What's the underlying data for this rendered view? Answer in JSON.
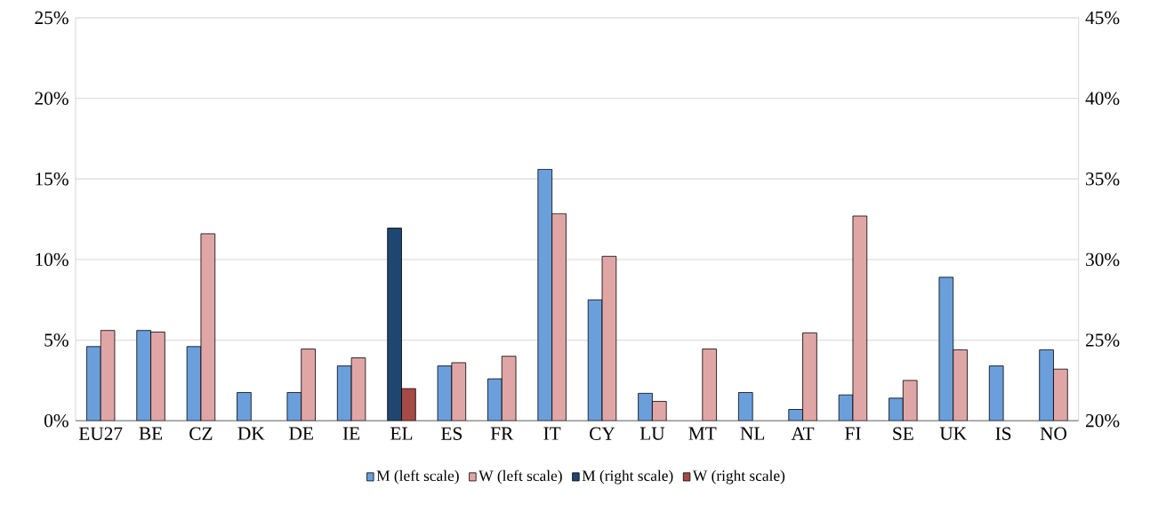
{
  "chart_data": {
    "type": "bar",
    "categories": [
      "EU27",
      "BE",
      "CZ",
      "DK",
      "DE",
      "IE",
      "EL",
      "ES",
      "FR",
      "IT",
      "CY",
      "LU",
      "MT",
      "NL",
      "AT",
      "FI",
      "SE",
      "UK",
      "IS",
      "NO"
    ],
    "series": [
      {
        "name": "M (left scale)",
        "color": "#6a9fdc",
        "values": [
          4.6,
          5.6,
          4.6,
          1.75,
          1.75,
          3.4,
          null,
          3.4,
          2.6,
          15.6,
          7.5,
          1.7,
          null,
          1.75,
          0.7,
          1.6,
          1.4,
          8.9,
          3.4,
          4.4
        ]
      },
      {
        "name": "W (left scale)",
        "color": "#e0a6a6",
        "values": [
          5.6,
          5.5,
          11.6,
          null,
          4.45,
          3.9,
          null,
          3.6,
          4.0,
          12.85,
          10.2,
          1.2,
          4.45,
          null,
          5.45,
          12.7,
          2.5,
          4.4,
          null,
          3.2
        ]
      },
      {
        "name": "M (right scale)",
        "color": "#1f4670",
        "axis": "y2",
        "values": [
          null,
          null,
          null,
          null,
          null,
          null,
          31.95,
          null,
          null,
          null,
          null,
          null,
          null,
          null,
          null,
          null,
          null,
          null,
          null,
          null
        ]
      },
      {
        "name": "W (right scale)",
        "color": "#a64a45",
        "axis": "y2",
        "values": [
          null,
          null,
          null,
          null,
          null,
          null,
          22.0,
          null,
          null,
          null,
          null,
          null,
          null,
          null,
          null,
          null,
          null,
          null,
          null,
          null
        ]
      }
    ],
    "ylim": [
      0,
      25
    ],
    "yticks": [
      {
        "value": 0,
        "label": "0%"
      },
      {
        "value": 5,
        "label": "5%"
      },
      {
        "value": 10,
        "label": "10%"
      },
      {
        "value": 15,
        "label": "15%"
      },
      {
        "value": 20,
        "label": "20%"
      },
      {
        "value": 25,
        "label": "25%"
      }
    ],
    "y2lim": [
      20,
      45
    ],
    "y2ticks": [
      {
        "value": 20,
        "label": "20%"
      },
      {
        "value": 25,
        "label": "25%"
      },
      {
        "value": 30,
        "label": "30%"
      },
      {
        "value": 35,
        "label": "35%"
      },
      {
        "value": 40,
        "label": "40%"
      },
      {
        "value": 45,
        "label": "45%"
      }
    ],
    "grid": "y",
    "legend": "bottom"
  }
}
